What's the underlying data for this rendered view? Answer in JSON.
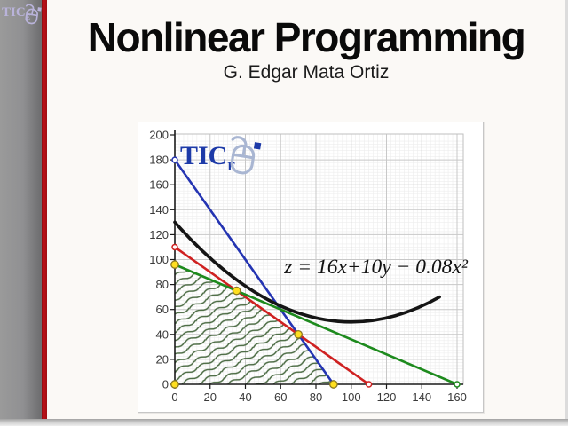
{
  "slide": {
    "title": "Nonlinear Programming",
    "subtitle": "G. Edgar Mata Ortiz"
  },
  "branding": {
    "logo_text": "TIC",
    "logo_sub": "E"
  },
  "colors": {
    "accent_stripe_red": "#bb1118",
    "chart_logo_blue": "#1d3aa8",
    "header_logo_lavender": "#b9b3da",
    "vertex_fill": "#ffdf1f",
    "vertex_stroke": "#8a781f",
    "hatch_green": "#4a6a42",
    "grid_major": "#c8c8c8",
    "grid_minor": "#ededed",
    "axis": "#1a1a1a"
  },
  "chart_data": {
    "type": "line",
    "title": "",
    "xlabel": "",
    "ylabel": "",
    "xlim": [
      0,
      160
    ],
    "ylim": [
      0,
      200
    ],
    "x_ticks": [
      0,
      20,
      40,
      60,
      80,
      100,
      120,
      140,
      160
    ],
    "y_ticks": [
      0,
      20,
      40,
      60,
      80,
      100,
      120,
      140,
      160,
      180,
      200
    ],
    "grid": "major and fine minor, on",
    "legend": "none",
    "annotation": {
      "text": "z = 16x+10y − 0.08x²",
      "x": 114,
      "y": 89
    },
    "series": [
      {
        "name": "constraint-line-blue",
        "color": "#2434b2",
        "width": 2.6,
        "points": [
          [
            0,
            180
          ],
          [
            90,
            0
          ]
        ],
        "open_markers": [
          [
            0,
            180
          ]
        ]
      },
      {
        "name": "constraint-line-red",
        "color": "#cf2121",
        "width": 2.6,
        "points": [
          [
            0,
            110
          ],
          [
            110,
            0
          ]
        ],
        "open_markers": [
          [
            0,
            110
          ],
          [
            110,
            0
          ]
        ]
      },
      {
        "name": "constraint-line-green",
        "color": "#1d8a1d",
        "width": 2.6,
        "points": [
          [
            0,
            96
          ],
          [
            160,
            0
          ]
        ],
        "open_markers": [
          [
            160,
            0
          ]
        ]
      },
      {
        "name": "objective-curve",
        "color": "#151515",
        "width": 3.6,
        "quadratic": {
          "a": 0.008,
          "b": -1.6,
          "c": 130,
          "x_range": [
            0,
            150
          ]
        }
      }
    ],
    "feasible_region": {
      "vertices": [
        [
          0,
          0
        ],
        [
          0,
          96
        ],
        [
          35,
          75
        ],
        [
          70,
          40
        ],
        [
          90,
          0
        ]
      ]
    },
    "corner_points": [
      [
        0,
        0
      ],
      [
        0,
        96
      ],
      [
        35,
        75
      ],
      [
        70,
        40
      ],
      [
        90,
        0
      ]
    ]
  }
}
